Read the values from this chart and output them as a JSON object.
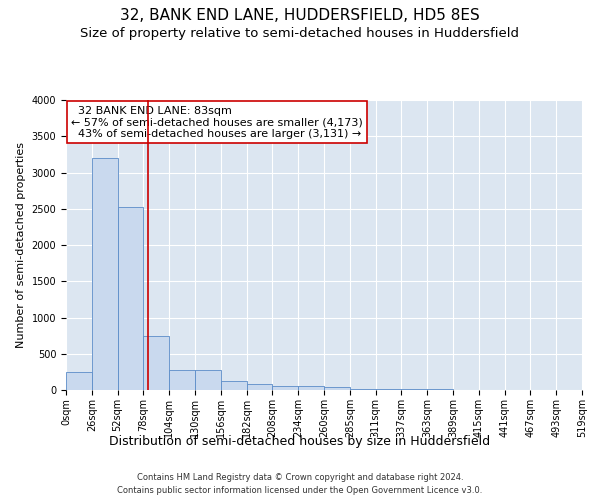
{
  "title": "32, BANK END LANE, HUDDERSFIELD, HD5 8ES",
  "subtitle": "Size of property relative to semi-detached houses in Huddersfield",
  "xlabel": "Distribution of semi-detached houses by size in Huddersfield",
  "ylabel": "Number of semi-detached properties",
  "footnote1": "Contains HM Land Registry data © Crown copyright and database right 2024.",
  "footnote2": "Contains public sector information licensed under the Open Government Licence v3.0.",
  "property_label": "32 BANK END LANE: 83sqm",
  "pct_smaller": "57% of semi-detached houses are smaller (4,173)",
  "pct_larger": "43% of semi-detached houses are larger (3,131)",
  "property_size": 83,
  "bin_edges": [
    0,
    26,
    52,
    78,
    104,
    130,
    156,
    182,
    208,
    234,
    260,
    286,
    312,
    338,
    364,
    390,
    416,
    442,
    468,
    494,
    520
  ],
  "bin_labels": [
    "0sqm",
    "26sqm",
    "52sqm",
    "78sqm",
    "104sqm",
    "130sqm",
    "156sqm",
    "182sqm",
    "208sqm",
    "234sqm",
    "260sqm",
    "285sqm",
    "311sqm",
    "337sqm",
    "363sqm",
    "389sqm",
    "415sqm",
    "441sqm",
    "467sqm",
    "493sqm",
    "519sqm"
  ],
  "counts": [
    250,
    3200,
    2520,
    750,
    270,
    270,
    120,
    80,
    60,
    55,
    40,
    20,
    15,
    10,
    8,
    5,
    3,
    2,
    1,
    1
  ],
  "bar_color": "#c9d9ee",
  "bar_edge_color": "#5b8cc8",
  "vline_color": "#cc0000",
  "vline_x": 83,
  "annotation_box_color": "#ffffff",
  "annotation_box_edge_color": "#cc0000",
  "background_color": "#dce6f1",
  "ylim": [
    0,
    4000
  ],
  "yticks": [
    0,
    500,
    1000,
    1500,
    2000,
    2500,
    3000,
    3500,
    4000
  ],
  "title_fontsize": 11,
  "subtitle_fontsize": 9.5,
  "xlabel_fontsize": 9,
  "ylabel_fontsize": 8,
  "tick_fontsize": 7,
  "annotation_fontsize": 8
}
